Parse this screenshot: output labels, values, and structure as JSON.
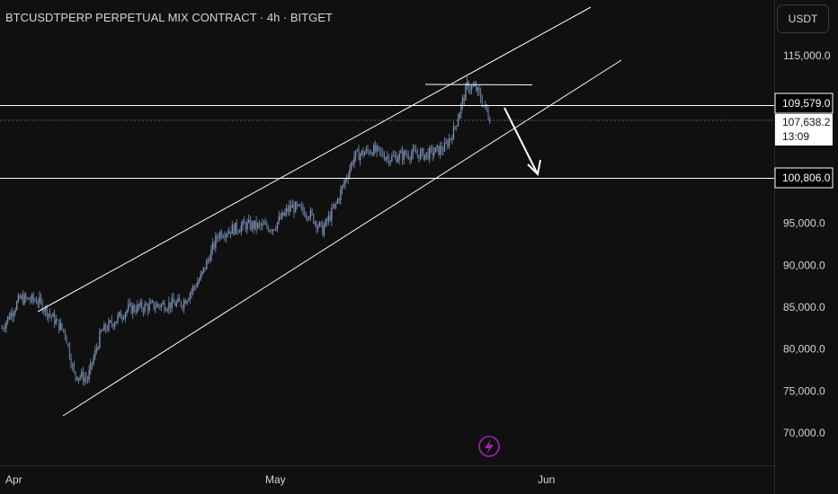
{
  "header": {
    "title": "BTCUSDTPERP PERPETUAL MIX CONTRACT · 4h · BITGET"
  },
  "axis": {
    "unit_label": "USDT"
  },
  "price_tags": {
    "resistance": "109,579.0",
    "last_price": "107,638.2",
    "countdown": "13:09",
    "support": "100,806.0"
  },
  "icons": {
    "bottom": "lightning-bolt-icon"
  },
  "colors": {
    "background": "#101010",
    "candle": "#7d93b5",
    "drawings": "#ffffff",
    "text": "#d1d4dc"
  },
  "chart_data": {
    "type": "candlestick",
    "title": "BTCUSDTPERP PERPETUAL MIX CONTRACT · 4h · BITGET",
    "timeframe": "4h",
    "y_ticks": [
      70000,
      75000,
      80000,
      85000,
      90000,
      95000,
      115000
    ],
    "y_tick_labels": [
      "70,000.0",
      "75,000.0",
      "80,000.0",
      "85,000.0",
      "90,000.0",
      "95,000.0",
      "115,000.0"
    ],
    "x_tick_labels": [
      "Apr",
      "May",
      "Jun"
    ],
    "ylim": [
      66000,
      120000
    ],
    "horizontal_levels": [
      109579.0,
      100806.0
    ],
    "last_price": 107638.2,
    "price_path_anchors": [
      {
        "t": 0,
        "p": 82500
      },
      {
        "t": 2,
        "p": 86000
      },
      {
        "t": 4,
        "p": 85800
      },
      {
        "t": 7,
        "p": 82000
      },
      {
        "t": 8,
        "p": 77000
      },
      {
        "t": 9.5,
        "p": 76500
      },
      {
        "t": 11,
        "p": 82000
      },
      {
        "t": 14,
        "p": 84800
      },
      {
        "t": 17,
        "p": 85200
      },
      {
        "t": 20,
        "p": 85500
      },
      {
        "t": 22,
        "p": 88500
      },
      {
        "t": 24,
        "p": 93800
      },
      {
        "t": 27,
        "p": 94800
      },
      {
        "t": 30,
        "p": 94500
      },
      {
        "t": 32,
        "p": 97000
      },
      {
        "t": 34,
        "p": 96200
      },
      {
        "t": 35.5,
        "p": 94200
      },
      {
        "t": 37,
        "p": 97300
      },
      {
        "t": 39,
        "p": 103000
      },
      {
        "t": 41,
        "p": 103800
      },
      {
        "t": 43,
        "p": 102800
      },
      {
        "t": 45,
        "p": 103300
      },
      {
        "t": 47,
        "p": 103200
      },
      {
        "t": 49,
        "p": 104000
      },
      {
        "t": 50,
        "p": 106000
      },
      {
        "t": 51.5,
        "p": 111400
      },
      {
        "t": 52.5,
        "p": 111000
      },
      {
        "t": 54,
        "p": 107600
      }
    ]
  }
}
